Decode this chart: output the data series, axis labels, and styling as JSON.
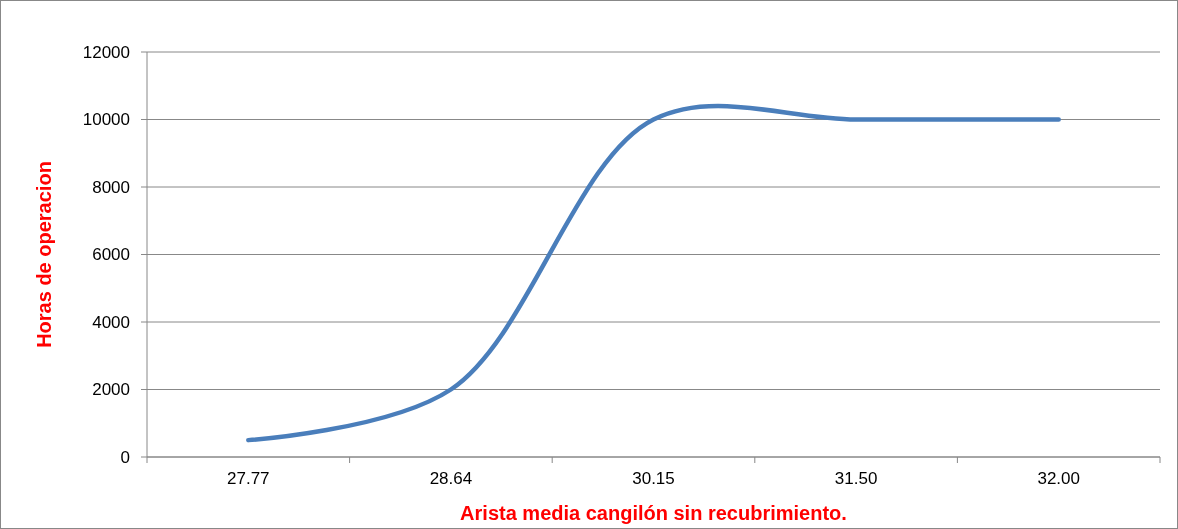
{
  "chart_data": {
    "type": "line",
    "xlabel": "Arista media cangilón sin recubrimiento.",
    "ylabel": "Horas de operacion",
    "categories": [
      "27.77",
      "28.64",
      "30.15",
      "31.50",
      "32.00"
    ],
    "series": [
      {
        "color": "#4a7ebb",
        "values": [
          500,
          2000,
          10000,
          10000,
          10000
        ]
      }
    ],
    "ylim": [
      0,
      12000
    ],
    "yticks": [
      0,
      2000,
      4000,
      6000,
      8000,
      10000,
      12000
    ],
    "grid": "y",
    "marker": "none",
    "line_style": "solid"
  }
}
